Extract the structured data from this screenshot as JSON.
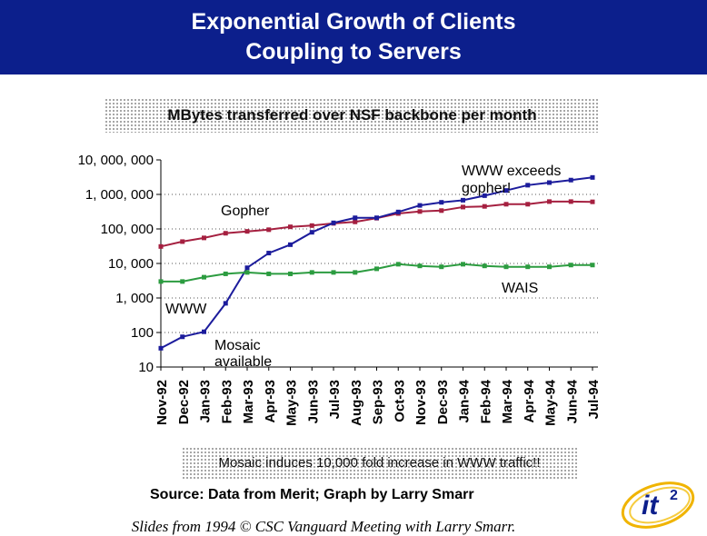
{
  "header": {
    "title_line1": "Exponential Growth of Clients",
    "title_line2": "Coupling to Servers",
    "background": "#0c1f8c"
  },
  "subtitle": "MBytes transferred over NSF backbone per month",
  "footnote": "Mosaic induces 10,000 fold increase in WWW traffic!!",
  "source": "Source: Data from Merit; Graph by Larry Smarr",
  "credit": "Slides from 1994 © CSC Vanguard Meeting with Larry Smarr.",
  "logo": {
    "text": "it",
    "superscript": "2"
  },
  "chart_data": {
    "type": "line",
    "yscale": "log",
    "ylim": [
      10,
      10000000
    ],
    "ytick_values": [
      10000000,
      1000000,
      100000,
      10000,
      1000,
      100,
      10
    ],
    "ytick_labels": [
      "10, 000, 000",
      "1, 000, 000",
      "100, 000",
      "10, 000",
      "1, 000",
      "100",
      "10"
    ],
    "categories": [
      "Nov-92",
      "Dec-92",
      "Jan-93",
      "Feb-93",
      "Mar-93",
      "Apr-93",
      "May-93",
      "Jun-93",
      "Jul-93",
      "Aug-93",
      "Sep-93",
      "Oct-93",
      "Nov-93",
      "Dec-93",
      "Jan-94",
      "Feb-94",
      "Mar-94",
      "Apr-94",
      "May-94",
      "Jun-94",
      "Jul-94"
    ],
    "grid": "horizontal dotted",
    "series": [
      {
        "key": "gopher",
        "color": "#a52040",
        "values": [
          31000,
          43000,
          55000,
          75000,
          85000,
          95000,
          115000,
          125000,
          145000,
          160000,
          205000,
          280000,
          320000,
          340000,
          430000,
          450000,
          520000,
          520000,
          620000,
          620000,
          610000
        ]
      },
      {
        "key": "www",
        "color": "#1c1c9c",
        "values": [
          35,
          75,
          105,
          700,
          7500,
          20000,
          35000,
          80000,
          150000,
          210000,
          210000,
          310000,
          480000,
          590000,
          680000,
          920000,
          1300000,
          1850000,
          2200000,
          2600000,
          3100000
        ]
      },
      {
        "key": "wais",
        "color": "#2c9c40",
        "values": [
          3000,
          3000,
          4000,
          5000,
          5500,
          5000,
          5000,
          5500,
          5500,
          5500,
          7000,
          9500,
          8500,
          8000,
          9500,
          8500,
          8000,
          8000,
          8000,
          9000,
          9000
        ]
      }
    ],
    "annotations": [
      {
        "text": "Gopher",
        "key": "gopher_label"
      },
      {
        "text": "WWW",
        "key": "www_label"
      },
      {
        "text": "WAIS",
        "key": "wais_label"
      },
      {
        "text": "Mosaic\navailable",
        "key": "mosaic_label"
      },
      {
        "text": "WWW exceeds\ngopher!",
        "key": "exceeds_label"
      }
    ]
  }
}
